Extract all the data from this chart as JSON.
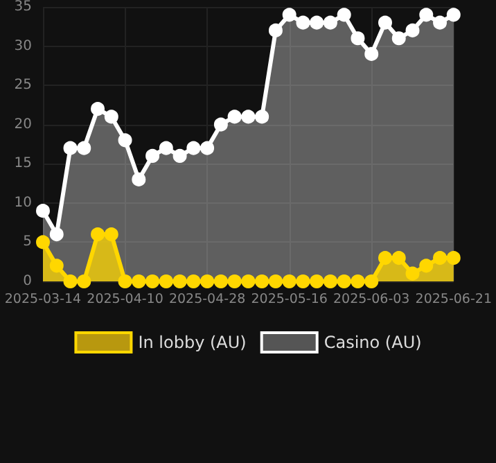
{
  "chart_data": {
    "type": "area",
    "categories": [
      "2025-03-14",
      null,
      null,
      null,
      null,
      null,
      "2025-04-10",
      null,
      null,
      null,
      null,
      null,
      "2025-04-28",
      null,
      null,
      null,
      null,
      null,
      "2025-05-16",
      null,
      null,
      null,
      null,
      null,
      "2025-06-03",
      null,
      null,
      null,
      null,
      null,
      "2025-06-21"
    ],
    "series": [
      {
        "name": "In lobby (AU)",
        "color": "#ffd700",
        "values": [
          5,
          2,
          0,
          0,
          6,
          6,
          0,
          0,
          0,
          0,
          0,
          0,
          0,
          0,
          0,
          0,
          0,
          0,
          0,
          0,
          0,
          0,
          0,
          0,
          0,
          3,
          3,
          1,
          2,
          3,
          3
        ]
      },
      {
        "name": "Casino (AU)",
        "color": "#ffffff",
        "values": [
          9,
          6,
          17,
          17,
          22,
          21,
          18,
          13,
          16,
          17,
          16,
          17,
          17,
          20,
          21,
          21,
          21,
          32,
          34,
          33,
          33,
          33,
          34,
          31,
          29,
          33,
          31,
          32,
          34,
          33,
          34
        ]
      }
    ],
    "ylim": [
      0,
      35
    ],
    "yticks": [
      0,
      5,
      10,
      15,
      20,
      25,
      30,
      35
    ],
    "grid": true,
    "legend": "bottom",
    "marker": "circle",
    "line_style": "solid"
  }
}
